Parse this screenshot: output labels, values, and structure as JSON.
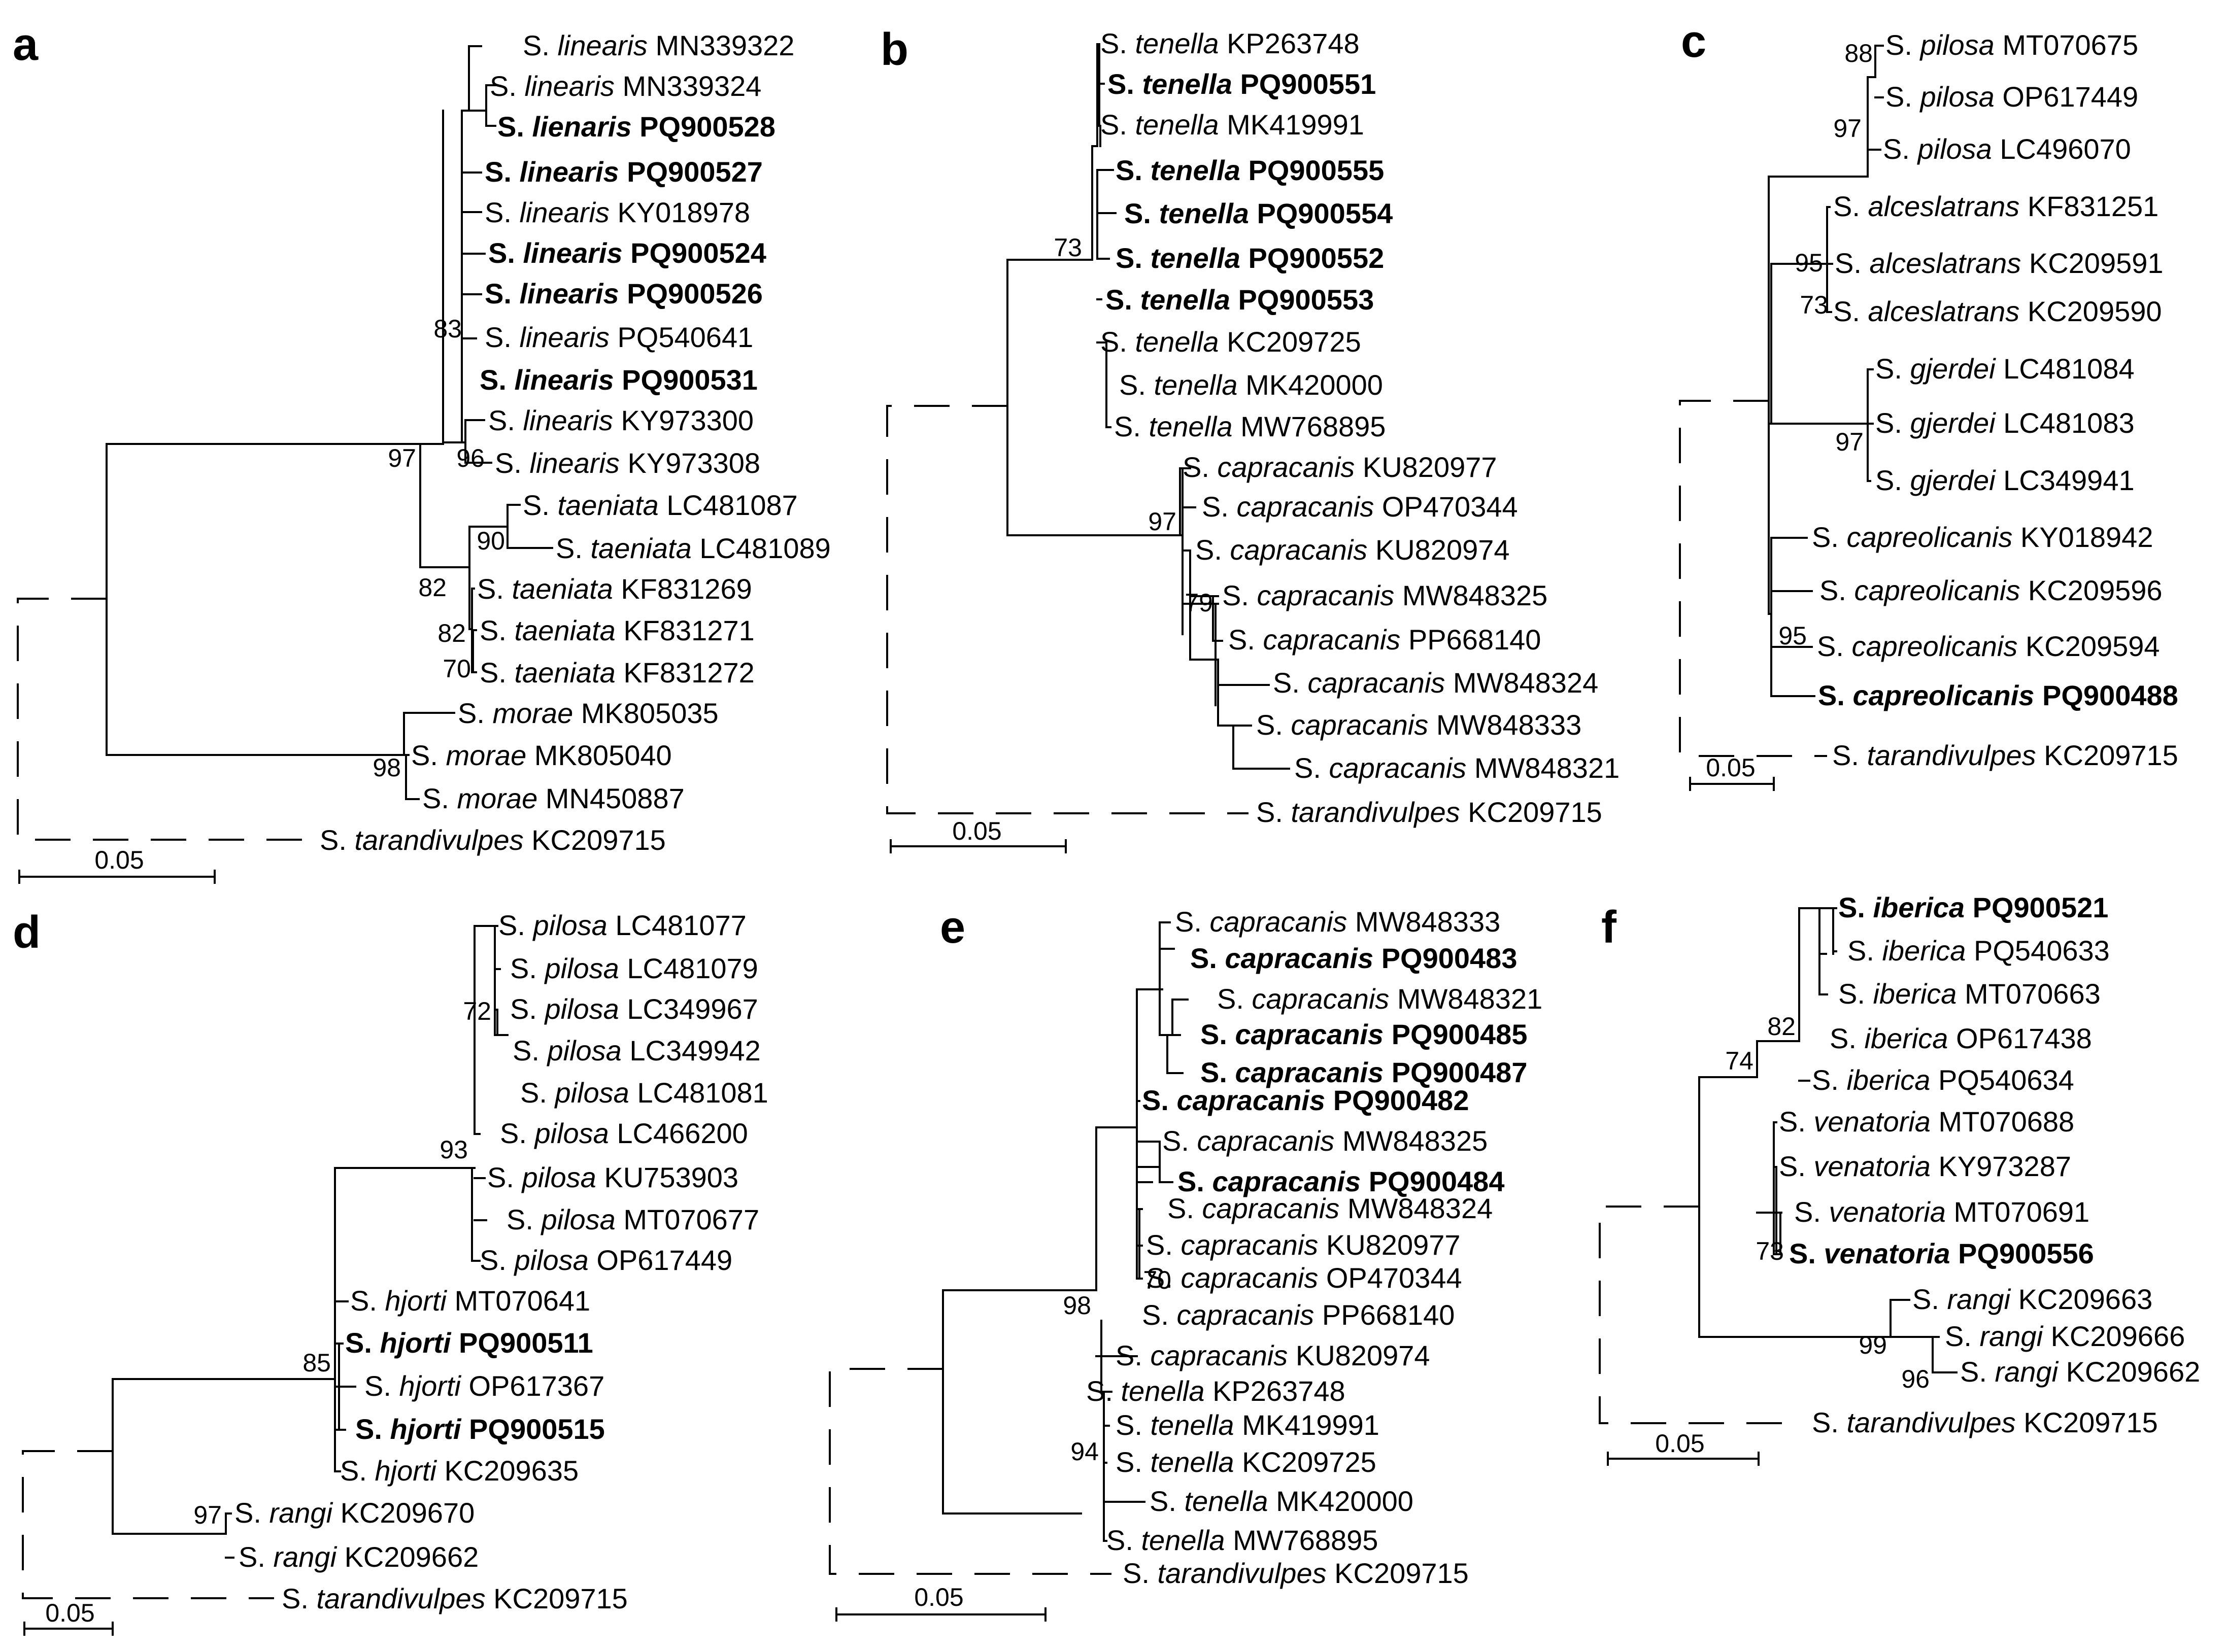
{
  "figure": {
    "panels": [
      {
        "letter": "a",
        "scale_label": "0.05",
        "taxa": [
          {
            "genus": "S.",
            "species": "linearis",
            "acc": "MN339322",
            "bold": false
          },
          {
            "genus": "S.",
            "species": "linearis",
            "acc": "MN339324",
            "bold": false
          },
          {
            "genus": "S.",
            "species": "lienaris",
            "acc": "PQ900528",
            "bold": true
          },
          {
            "genus": "S.",
            "species": "linearis",
            "acc": "PQ900527",
            "bold": true
          },
          {
            "genus": "S.",
            "species": "linearis",
            "acc": "KY018978",
            "bold": false
          },
          {
            "genus": "S.",
            "species": "linearis",
            "acc": "PQ900524",
            "bold": true
          },
          {
            "genus": "S.",
            "species": "linearis",
            "acc": "PQ900526",
            "bold": true
          },
          {
            "genus": "S.",
            "species": "linearis",
            "acc": "PQ540641",
            "bold": false
          },
          {
            "genus": "S.",
            "species": "linearis",
            "acc": "PQ900531",
            "bold": true
          },
          {
            "genus": "S.",
            "species": "linearis",
            "acc": "KY973300",
            "bold": false
          },
          {
            "genus": "S.",
            "species": "linearis",
            "acc": "KY973308",
            "bold": false
          },
          {
            "genus": "S.",
            "species": "taeniata",
            "acc": "LC481087",
            "bold": false
          },
          {
            "genus": "S.",
            "species": "taeniata",
            "acc": "LC481089",
            "bold": false
          },
          {
            "genus": "S.",
            "species": "taeniata",
            "acc": "KF831269",
            "bold": false
          },
          {
            "genus": "S.",
            "species": "taeniata",
            "acc": "KF831271",
            "bold": false
          },
          {
            "genus": "S.",
            "species": "taeniata",
            "acc": "KF831272",
            "bold": false
          },
          {
            "genus": "S.",
            "species": "morae",
            "acc": "MK805035",
            "bold": false
          },
          {
            "genus": "S.",
            "species": "morae",
            "acc": "MK805040",
            "bold": false
          },
          {
            "genus": "S.",
            "species": "morae",
            "acc": "MN450887",
            "bold": false
          },
          {
            "genus": "S.",
            "species": "tarandivulpes",
            "acc": "KC209715",
            "bold": false
          }
        ],
        "bootstrap": [
          "83",
          "97",
          "96",
          "90",
          "82",
          "82",
          "70",
          "98"
        ]
      },
      {
        "letter": "b",
        "scale_label": "0.05",
        "taxa": [
          {
            "genus": "S.",
            "species": "tenella",
            "acc": "KP263748",
            "bold": false
          },
          {
            "genus": "S.",
            "species": "tenella",
            "acc": "PQ900551",
            "bold": true
          },
          {
            "genus": "S.",
            "species": "tenella",
            "acc": "MK419991",
            "bold": false
          },
          {
            "genus": "S.",
            "species": "tenella",
            "acc": "PQ900555",
            "bold": true
          },
          {
            "genus": "S.",
            "species": "tenella",
            "acc": "PQ900554",
            "bold": true
          },
          {
            "genus": "S.",
            "species": "tenella",
            "acc": "PQ900552",
            "bold": true
          },
          {
            "genus": "S.",
            "species": "tenella",
            "acc": "PQ900553",
            "bold": true
          },
          {
            "genus": "S.",
            "species": "tenella",
            "acc": "KC209725",
            "bold": false
          },
          {
            "genus": "S.",
            "species": "tenella",
            "acc": "MK420000",
            "bold": false
          },
          {
            "genus": "S.",
            "species": "tenella",
            "acc": "MW768895",
            "bold": false
          },
          {
            "genus": "S.",
            "species": "capracanis",
            "acc": "KU820977",
            "bold": false
          },
          {
            "genus": "S.",
            "species": "capracanis",
            "acc": "OP470344",
            "bold": false
          },
          {
            "genus": "S.",
            "species": "capracanis",
            "acc": "KU820974",
            "bold": false
          },
          {
            "genus": "S.",
            "species": "capracanis",
            "acc": "MW848325",
            "bold": false
          },
          {
            "genus": "S.",
            "species": "capracanis",
            "acc": "PP668140",
            "bold": false
          },
          {
            "genus": "S.",
            "species": "capracanis",
            "acc": "MW848324",
            "bold": false
          },
          {
            "genus": "S.",
            "species": "capracanis",
            "acc": "MW848333",
            "bold": false
          },
          {
            "genus": "S.",
            "species": "capracanis",
            "acc": "MW848321",
            "bold": false
          },
          {
            "genus": "S.",
            "species": "tarandivulpes",
            "acc": "KC209715",
            "bold": false
          }
        ],
        "bootstrap": [
          "73",
          "97",
          "79"
        ]
      },
      {
        "letter": "c",
        "scale_label": "0.05",
        "taxa": [
          {
            "genus": "S.",
            "species": "pilosa",
            "acc": "MT070675",
            "bold": false
          },
          {
            "genus": "S.",
            "species": "pilosa",
            "acc": "OP617449",
            "bold": false
          },
          {
            "genus": "S.",
            "species": "pilosa",
            "acc": "LC496070",
            "bold": false
          },
          {
            "genus": "S.",
            "species": "alceslatrans",
            "acc": "KF831251",
            "bold": false
          },
          {
            "genus": "S.",
            "species": "alceslatrans",
            "acc": "KC209591",
            "bold": false
          },
          {
            "genus": "S.",
            "species": "alceslatrans",
            "acc": "KC209590",
            "bold": false
          },
          {
            "genus": "S.",
            "species": "gjerdei",
            "acc": "LC481084",
            "bold": false
          },
          {
            "genus": "S.",
            "species": "gjerdei",
            "acc": "LC481083",
            "bold": false
          },
          {
            "genus": "S.",
            "species": "gjerdei",
            "acc": "LC349941",
            "bold": false
          },
          {
            "genus": "S.",
            "species": "capreolicanis",
            "acc": "KY018942",
            "bold": false
          },
          {
            "genus": "S.",
            "species": "capreolicanis",
            "acc": "KC209596",
            "bold": false
          },
          {
            "genus": "S.",
            "species": "capreolicanis",
            "acc": "KC209594",
            "bold": false
          },
          {
            "genus": "S.",
            "species": "capreolicanis",
            "acc": "PQ900488",
            "bold": true
          },
          {
            "genus": "S.",
            "species": "tarandivulpes",
            "acc": "KC209715",
            "bold": false
          }
        ],
        "bootstrap": [
          "88",
          "97",
          "95",
          "73",
          "97",
          "95"
        ]
      },
      {
        "letter": "d",
        "scale_label": "0.05",
        "taxa": [
          {
            "genus": "S.",
            "species": "pilosa",
            "acc": "LC481077",
            "bold": false
          },
          {
            "genus": "S.",
            "species": "pilosa",
            "acc": "LC481079",
            "bold": false
          },
          {
            "genus": "S.",
            "species": "pilosa",
            "acc": "LC349967",
            "bold": false
          },
          {
            "genus": "S.",
            "species": "pilosa",
            "acc": "LC349942",
            "bold": false
          },
          {
            "genus": "S.",
            "species": "pilosa",
            "acc": "LC481081",
            "bold": false
          },
          {
            "genus": "S.",
            "species": "pilosa",
            "acc": "LC466200",
            "bold": false
          },
          {
            "genus": "S.",
            "species": "pilosa",
            "acc": "KU753903",
            "bold": false
          },
          {
            "genus": "S.",
            "species": "pilosa",
            "acc": "MT070677",
            "bold": false
          },
          {
            "genus": "S.",
            "species": "pilosa",
            "acc": "OP617449",
            "bold": false
          },
          {
            "genus": "S.",
            "species": "hjorti",
            "acc": "MT070641",
            "bold": false
          },
          {
            "genus": "S.",
            "species": "hjorti",
            "acc": "PQ900511",
            "bold": true
          },
          {
            "genus": "S.",
            "species": "hjorti",
            "acc": "OP617367",
            "bold": false
          },
          {
            "genus": "S.",
            "species": "hjorti",
            "acc": "PQ900515",
            "bold": true
          },
          {
            "genus": "S.",
            "species": "hjorti",
            "acc": "KC209635",
            "bold": false
          },
          {
            "genus": "S.",
            "species": "rangi",
            "acc": "KC209670",
            "bold": false
          },
          {
            "genus": "S.",
            "species": "rangi",
            "acc": "KC209662",
            "bold": false
          },
          {
            "genus": "S.",
            "species": "tarandivulpes",
            "acc": "KC209715",
            "bold": false
          }
        ],
        "bootstrap": [
          "72",
          "93",
          "85",
          "97"
        ]
      },
      {
        "letter": "e",
        "scale_label": "0.05",
        "taxa": [
          {
            "genus": "S.",
            "species": "capracanis",
            "acc": "MW848333",
            "bold": false
          },
          {
            "genus": "S.",
            "species": "capracanis",
            "acc": "PQ900483",
            "bold": true
          },
          {
            "genus": "S.",
            "species": "capracanis",
            "acc": "MW848321",
            "bold": false
          },
          {
            "genus": "S.",
            "species": "capracanis",
            "acc": "PQ900485",
            "bold": true
          },
          {
            "genus": "S.",
            "species": "capracanis",
            "acc": "PQ900487",
            "bold": true
          },
          {
            "genus": "S.",
            "species": "capracanis",
            "acc": "PQ900482",
            "bold": true
          },
          {
            "genus": "S.",
            "species": "capracanis",
            "acc": "MW848325",
            "bold": false
          },
          {
            "genus": "S.",
            "species": "capracanis",
            "acc": "PQ900484",
            "bold": true
          },
          {
            "genus": "S.",
            "species": "capracanis",
            "acc": "MW848324",
            "bold": false
          },
          {
            "genus": "S.",
            "species": "capracanis",
            "acc": "KU820977",
            "bold": false
          },
          {
            "genus": "S.",
            "species": "capracanis",
            "acc": "OP470344",
            "bold": false
          },
          {
            "genus": "S.",
            "species": "capracanis",
            "acc": "PP668140",
            "bold": false
          },
          {
            "genus": "S.",
            "species": "capracanis",
            "acc": "KU820974",
            "bold": false
          },
          {
            "genus": "S.",
            "species": "tenella",
            "acc": "KP263748",
            "bold": false
          },
          {
            "genus": "S.",
            "species": "tenella",
            "acc": "MK419991",
            "bold": false
          },
          {
            "genus": "S.",
            "species": "tenella",
            "acc": "KC209725",
            "bold": false
          },
          {
            "genus": "S.",
            "species": "tenella",
            "acc": "MK420000",
            "bold": false
          },
          {
            "genus": "S.",
            "species": "tenella",
            "acc": "MW768895",
            "bold": false
          },
          {
            "genus": "S.",
            "species": "tarandivulpes",
            "acc": "KC209715",
            "bold": false
          }
        ],
        "bootstrap": [
          "70",
          "98",
          "94"
        ]
      },
      {
        "letter": "f",
        "scale_label": "0.05",
        "taxa": [
          {
            "genus": "S.",
            "species": "iberica",
            "acc": "PQ900521",
            "bold": true
          },
          {
            "genus": "S.",
            "species": "iberica",
            "acc": "PQ540633",
            "bold": false
          },
          {
            "genus": "S.",
            "species": "iberica",
            "acc": "MT070663",
            "bold": false
          },
          {
            "genus": "S.",
            "species": "iberica",
            "acc": "OP617438",
            "bold": false
          },
          {
            "genus": "S.",
            "species": "iberica",
            "acc": "PQ540634",
            "bold": false
          },
          {
            "genus": "S.",
            "species": "venatoria",
            "acc": "MT070688",
            "bold": false
          },
          {
            "genus": "S.",
            "species": "venatoria",
            "acc": "KY973287",
            "bold": false
          },
          {
            "genus": "S.",
            "species": "venatoria",
            "acc": "MT070691",
            "bold": false
          },
          {
            "genus": "S.",
            "species": "venatoria",
            "acc": "PQ900556",
            "bold": true
          },
          {
            "genus": "S.",
            "species": "rangi",
            "acc": "KC209663",
            "bold": false
          },
          {
            "genus": "S.",
            "species": "rangi",
            "acc": "KC209666",
            "bold": false
          },
          {
            "genus": "S.",
            "species": "rangi",
            "acc": "KC209662",
            "bold": false
          },
          {
            "genus": "S.",
            "species": "tarandivulpes",
            "acc": "KC209715",
            "bold": false
          }
        ],
        "bootstrap": [
          "82",
          "74",
          "73",
          "99",
          "96"
        ]
      }
    ]
  }
}
